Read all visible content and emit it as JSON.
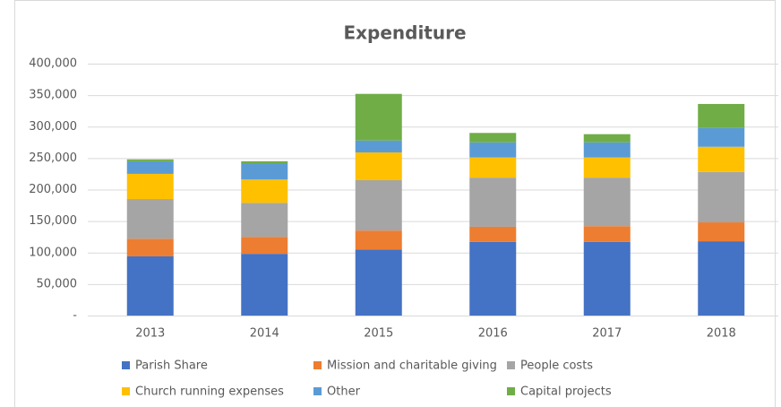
{
  "chart_data": {
    "type": "stacked-bar",
    "title": "Expenditure",
    "categories": [
      "2013",
      "2014",
      "2015",
      "2016",
      "2017",
      "2018"
    ],
    "series": [
      {
        "name": "Parish Share",
        "color": "#4472c4",
        "values": [
          94000,
          98000,
          105000,
          117000,
          117000,
          118000
        ]
      },
      {
        "name": "Mission and charitable giving",
        "color": "#ed7d31",
        "values": [
          28000,
          27000,
          30000,
          24000,
          25000,
          30000
        ]
      },
      {
        "name": "People costs",
        "color": "#a5a5a5",
        "values": [
          63000,
          54000,
          80000,
          78000,
          77000,
          80000
        ]
      },
      {
        "name": "Church running expenses",
        "color": "#ffc000",
        "values": [
          40000,
          37000,
          44000,
          32000,
          32000,
          40000
        ]
      },
      {
        "name": "Other",
        "color": "#5b9bd5",
        "values": [
          20000,
          26000,
          19000,
          24000,
          24000,
          30000
        ]
      },
      {
        "name": "Capital projects",
        "color": "#70ad47",
        "values": [
          3000,
          3000,
          74000,
          15000,
          13000,
          38000
        ]
      }
    ],
    "ylim": [
      0,
      400000
    ],
    "yticks": [
      {
        "value": 0,
        "label": "-"
      },
      {
        "value": 50000,
        "label": "50,000"
      },
      {
        "value": 100000,
        "label": "100,000"
      },
      {
        "value": 150000,
        "label": "150,000"
      },
      {
        "value": 200000,
        "label": "200,000"
      },
      {
        "value": 250000,
        "label": "250,000"
      },
      {
        "value": 300000,
        "label": "300,000"
      },
      {
        "value": 350000,
        "label": "350,000"
      },
      {
        "value": 400000,
        "label": "400,000"
      }
    ],
    "grid": true,
    "legend": "bottom"
  }
}
